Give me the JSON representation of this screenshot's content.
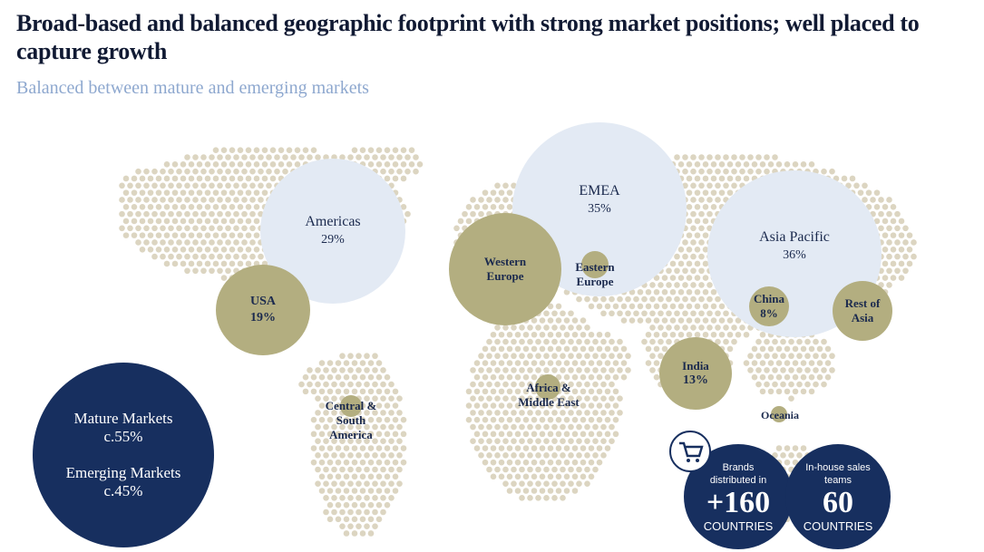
{
  "header": {
    "title": "Broad-based and balanced geographic footprint with strong market positions; well placed to capture growth",
    "subtitle": "Balanced between mature and emerging markets"
  },
  "regions": [
    {
      "name": "Americas",
      "share": "29%"
    },
    {
      "name": "EMEA",
      "share": "35%"
    },
    {
      "name": "Asia Pacific",
      "share": "36%"
    },
    {
      "name": "USA",
      "share": "19%"
    },
    {
      "name": "Western Europe"
    },
    {
      "name": "Eastern Europe"
    },
    {
      "name": "China",
      "share": "8%"
    },
    {
      "name": "Rest of Asia"
    },
    {
      "name": "India",
      "share": "13%"
    },
    {
      "name": "Central & South America"
    },
    {
      "name": "Africa & Middle East"
    },
    {
      "name": "Oceania"
    }
  ],
  "markets": {
    "mature_label": "Mature Markets",
    "mature_share": "c.55%",
    "emerging_label": "Emerging Markets",
    "emerging_share": "c.45%"
  },
  "stats": [
    {
      "caption": "Brands distributed in",
      "value": "+160",
      "unit": "COUNTRIES"
    },
    {
      "caption": "In-house sales teams",
      "value": "60",
      "unit": "COUNTRIES"
    }
  ]
}
